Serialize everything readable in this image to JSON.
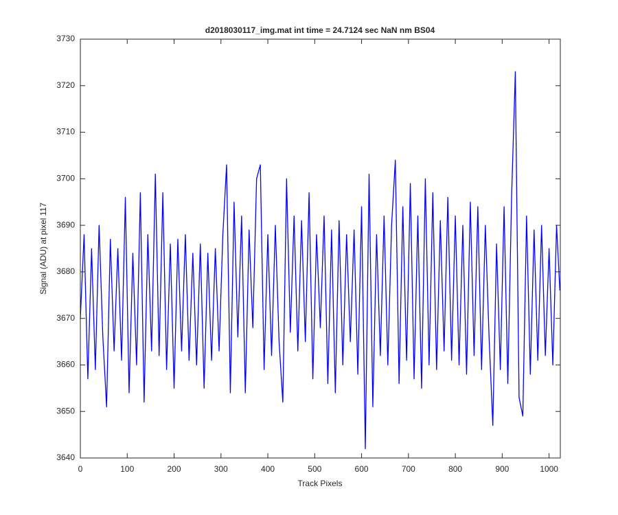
{
  "chart_data": {
    "type": "line",
    "title": "d2018030117_img.mat int time = 24.7124 sec  NaN nm BS04",
    "x_label": "Track Pixels",
    "y_label": "Signal (ADU) at pixel 117",
    "x": [
      0,
      8,
      16,
      24,
      32,
      40,
      48,
      56,
      64,
      72,
      80,
      88,
      96,
      104,
      112,
      120,
      128,
      136,
      144,
      152,
      160,
      168,
      176,
      184,
      192,
      200,
      208,
      216,
      224,
      232,
      240,
      248,
      256,
      264,
      272,
      280,
      288,
      296,
      304,
      312,
      320,
      328,
      336,
      344,
      352,
      360,
      368,
      376,
      384,
      392,
      400,
      408,
      416,
      424,
      432,
      440,
      448,
      456,
      464,
      472,
      480,
      488,
      496,
      504,
      512,
      520,
      528,
      536,
      544,
      552,
      560,
      568,
      576,
      584,
      592,
      600,
      608,
      616,
      624,
      632,
      640,
      648,
      656,
      664,
      672,
      680,
      688,
      696,
      704,
      712,
      720,
      728,
      736,
      744,
      752,
      760,
      768,
      776,
      784,
      792,
      800,
      808,
      816,
      824,
      832,
      840,
      848,
      856,
      864,
      872,
      880,
      888,
      896,
      904,
      912,
      920,
      928,
      936,
      944,
      952,
      960,
      968,
      976,
      984,
      992,
      1000,
      1008,
      1016,
      1023
    ],
    "series": [
      {
        "color": "#0000ff",
        "values": [
          3670,
          3688,
          3657,
          3685,
          3659,
          3690,
          3666,
          3651,
          3687,
          3663,
          3685,
          3661,
          3696,
          3654,
          3684,
          3660,
          3697,
          3652,
          3688,
          3663,
          3701,
          3662,
          3697,
          3659,
          3686,
          3655,
          3687,
          3663,
          3688,
          3661,
          3684,
          3660,
          3686,
          3655,
          3684,
          3661,
          3685,
          3663,
          3688,
          3703,
          3654,
          3695,
          3666,
          3692,
          3654,
          3689,
          3668,
          3700,
          3703,
          3659,
          3688,
          3662,
          3690,
          3665,
          3652,
          3700,
          3667,
          3692,
          3663,
          3691,
          3665,
          3697,
          3657,
          3688,
          3668,
          3692,
          3656,
          3689,
          3654,
          3691,
          3660,
          3688,
          3665,
          3689,
          3658,
          3694,
          3642,
          3701,
          3651,
          3688,
          3662,
          3692,
          3660,
          3690,
          3704,
          3656,
          3694,
          3661,
          3699,
          3657,
          3692,
          3655,
          3700,
          3660,
          3697,
          3659,
          3691,
          3663,
          3696,
          3661,
          3692,
          3660,
          3690,
          3658,
          3695,
          3662,
          3694,
          3659,
          3690,
          3666,
          3647,
          3686,
          3659,
          3694,
          3656,
          3696,
          3723,
          3653,
          3649,
          3692,
          3658,
          3689,
          3661,
          3690,
          3662,
          3685,
          3660,
          3690,
          3676
        ]
      }
    ],
    "xlim": [
      0,
      1024
    ],
    "xticks": [
      0,
      100,
      200,
      300,
      400,
      500,
      600,
      700,
      800,
      900,
      1000
    ],
    "ylim": [
      3640,
      3730
    ],
    "yticks": [
      3640,
      3650,
      3660,
      3670,
      3680,
      3690,
      3700,
      3710,
      3720,
      3730
    ]
  }
}
